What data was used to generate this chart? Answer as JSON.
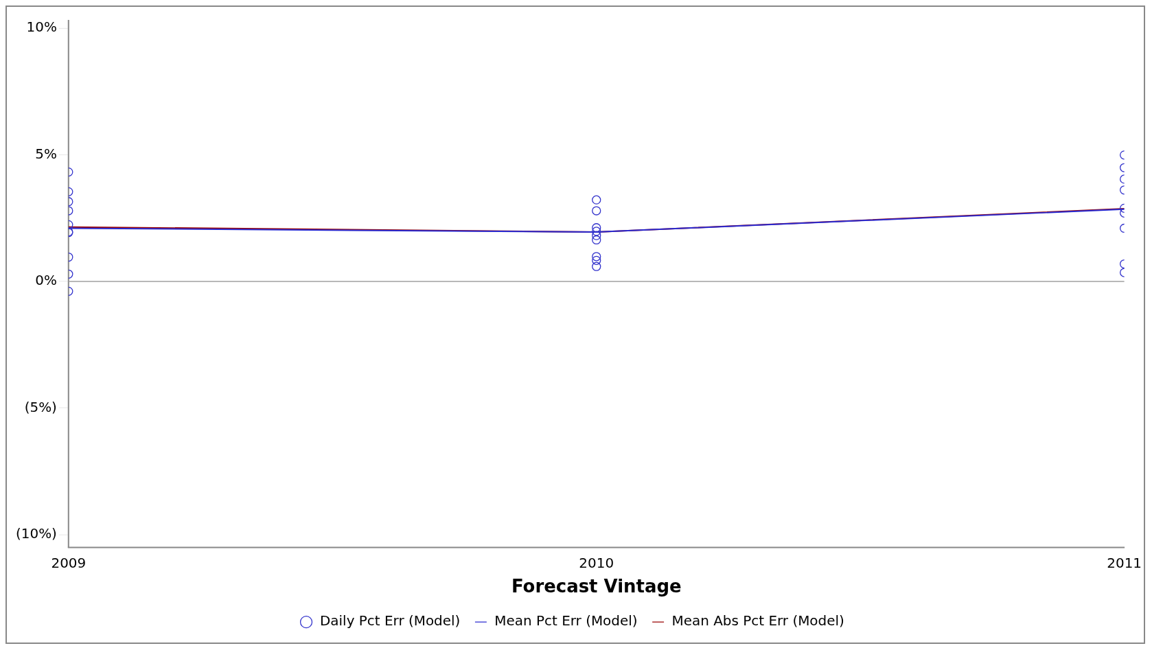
{
  "chart_data": {
    "type": "scatter",
    "xlabel": "Forecast Vintage",
    "x": [
      2009,
      2010,
      2011
    ],
    "xlim": [
      2009,
      2011
    ],
    "xticks": [
      2009,
      2010,
      2011
    ],
    "ylim": [
      -10.5,
      10.3
    ],
    "yticks": [
      {
        "value": 10,
        "label": "10%"
      },
      {
        "value": 5,
        "label": "5%"
      },
      {
        "value": 0,
        "label": "0%"
      },
      {
        "value": -5,
        "label": "(5%)"
      },
      {
        "value": -10,
        "label": "(10%)"
      }
    ],
    "ref_lines": [
      {
        "axis": "y",
        "value": 0,
        "color": "#a0a0a0"
      }
    ],
    "legend": "bottom",
    "grid": false,
    "series": [
      {
        "name": "Daily Pct Err (Model)",
        "marker": "circle",
        "color": "#3333cc",
        "x": [
          2009,
          2009,
          2009,
          2009,
          2009,
          2009,
          2009,
          2009,
          2009,
          2009,
          2010,
          2010,
          2010,
          2010,
          2010,
          2010,
          2010,
          2010,
          2010,
          2011,
          2011,
          2011,
          2011,
          2011,
          2011,
          2011,
          2011,
          2011
        ],
        "values": [
          4.32,
          3.54,
          3.15,
          2.79,
          2.24,
          1.96,
          1.93,
          0.96,
          0.29,
          -0.39,
          3.22,
          2.79,
          2.12,
          1.98,
          1.81,
          1.64,
          0.98,
          0.83,
          0.59,
          4.99,
          4.49,
          4.04,
          3.61,
          2.89,
          2.7,
          2.1,
          0.69,
          0.35
        ]
      },
      {
        "name": "Mean Pct Err (Model)",
        "type": "line",
        "marker": "none",
        "color": "#2a2ad0",
        "values": [
          2.1,
          1.95,
          2.85
        ]
      },
      {
        "name": "Mean Abs Pct Err (Model)",
        "type": "line",
        "marker": "none",
        "color": "#990000",
        "values": [
          2.15,
          1.95,
          2.87
        ]
      }
    ]
  }
}
